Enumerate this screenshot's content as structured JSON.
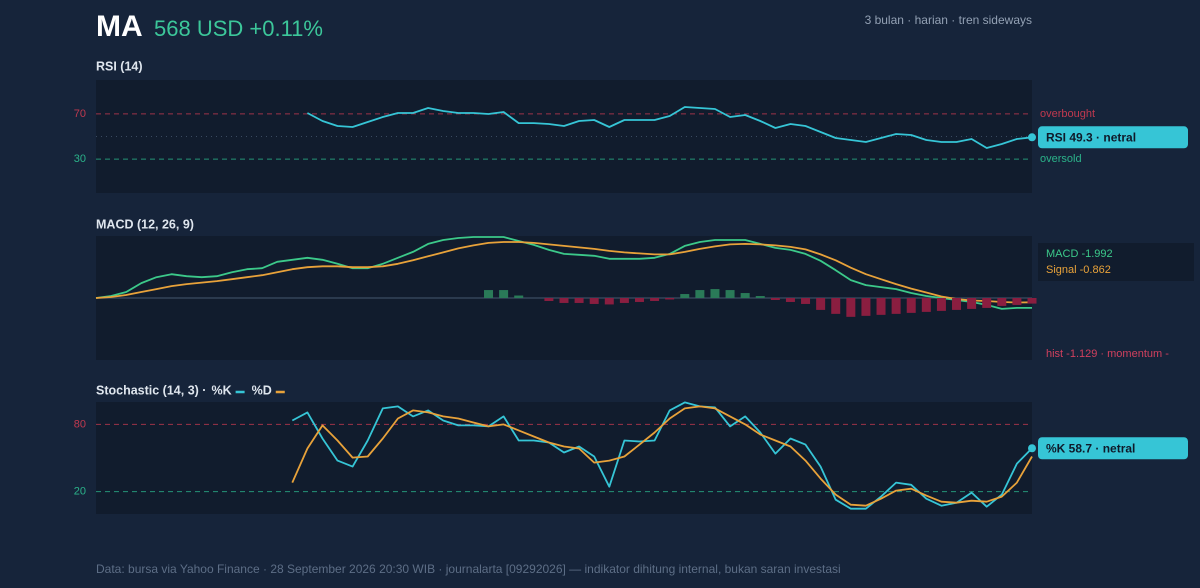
{
  "header": {
    "title": "MA",
    "price": "568 USD +0.11%",
    "subtitle": "3 bulan · harian · tren sideways"
  },
  "chart_data": [
    {
      "type": "line",
      "title": "RSI (14)",
      "ylim": [
        0,
        100
      ],
      "yticks": [
        30,
        70
      ],
      "tick_colors": [
        "#2bb38a",
        "#c0394f"
      ],
      "reference_labels": [
        "oversold",
        "overbought"
      ],
      "midline": 50,
      "value_label": "RSI 49.3 · netral",
      "series": [
        {
          "color": "#36c5d6",
          "values": [
            null,
            null,
            null,
            null,
            null,
            null,
            null,
            null,
            null,
            null,
            null,
            null,
            null,
            null,
            70.8,
            63.7,
            59.3,
            58.4,
            62.8,
            67.3,
            70.8,
            70.8,
            75.2,
            72.6,
            70.8,
            70.8,
            69.9,
            71.7,
            61.9,
            61.9,
            61.1,
            59.3,
            63.7,
            64.6,
            58.4,
            64.6,
            64.6,
            64.6,
            68.1,
            76.1,
            75.2,
            74.3,
            67.3,
            69.0,
            63.7,
            57.5,
            61.1,
            59.3,
            54.0,
            48.7,
            46.9,
            45.1,
            48.7,
            52.2,
            51.3,
            46.9,
            45.1,
            45.1,
            47.8,
            39.8,
            43.4,
            47.8,
            49.3
          ]
        }
      ]
    },
    {
      "type": "line",
      "title": "MACD (12, 26, 9)",
      "ylim": [
        -12.5,
        12.5
      ],
      "note": "hist -1.129 · momentum -",
      "series": [
        {
          "label": "MACD -1.992",
          "color": "#3cc98a",
          "values": [
            0,
            0.4,
            1.2,
            3.0,
            4.2,
            4.8,
            4.4,
            4.2,
            4.4,
            5.2,
            5.8,
            6.0,
            7.3,
            7.7,
            8.1,
            7.7,
            6.9,
            6.0,
            6.0,
            6.9,
            8.1,
            9.3,
            10.9,
            11.7,
            12.1,
            12.3,
            12.3,
            12.3,
            11.5,
            10.7,
            9.7,
            8.9,
            8.7,
            8.5,
            7.9,
            7.9,
            7.9,
            8.1,
            8.9,
            10.5,
            11.3,
            11.7,
            11.7,
            11.7,
            10.9,
            10.1,
            9.7,
            8.9,
            7.5,
            5.6,
            3.6,
            2.6,
            2.2,
            1.8,
            1.0,
            0.4,
            0,
            -0.4,
            -0.8,
            -1.4,
            -2.2,
            -2.0,
            -1.992
          ]
        },
        {
          "label": "Signal -0.862",
          "color": "#e8a23a",
          "values": [
            0,
            0.2,
            0.6,
            1.2,
            1.8,
            2.4,
            2.8,
            3.1,
            3.4,
            3.8,
            4.2,
            4.6,
            5.2,
            5.8,
            6.2,
            6.4,
            6.4,
            6.2,
            6.2,
            6.4,
            6.9,
            7.6,
            8.4,
            9.2,
            10.0,
            10.6,
            11.1,
            11.3,
            11.3,
            11.1,
            10.8,
            10.5,
            10.2,
            9.9,
            9.5,
            9.2,
            9.0,
            8.8,
            8.8,
            9.3,
            9.9,
            10.4,
            10.8,
            10.9,
            10.8,
            10.6,
            10.3,
            9.8,
            8.8,
            7.6,
            6.1,
            4.8,
            3.8,
            2.8,
            1.9,
            1.1,
            0.3,
            -0.2,
            -0.5,
            -0.6,
            -0.8,
            -0.9,
            -0.862
          ]
        },
        {
          "type": "bar",
          "color": "#2a7a58",
          "negative_color": "#8a1e40",
          "values": [
            null,
            null,
            null,
            null,
            null,
            null,
            null,
            null,
            null,
            null,
            null,
            null,
            null,
            null,
            null,
            null,
            null,
            null,
            null,
            null,
            null,
            null,
            null,
            null,
            null,
            null,
            1.6,
            1.6,
            0.5,
            0,
            -0.6,
            -1.0,
            -1.0,
            -1.2,
            -1.3,
            -1.0,
            -0.8,
            -0.6,
            -0.3,
            0.8,
            1.6,
            1.8,
            1.6,
            1.0,
            0.4,
            -0.4,
            -0.8,
            -1.2,
            -2.4,
            -3.2,
            -3.8,
            -3.6,
            -3.4,
            -3.2,
            -3.0,
            -2.8,
            -2.6,
            -2.4,
            -2.2,
            -2.0,
            -1.6,
            -1.4,
            -1.129
          ]
        }
      ]
    },
    {
      "type": "line",
      "title": "Stochastic (14, 3) ·",
      "ylim": [
        0,
        100
      ],
      "yticks": [
        20,
        80
      ],
      "tick_colors": [
        "#2bb38a",
        "#c0394f"
      ],
      "value_label": "%K 58.7 · netral",
      "series": [
        {
          "name": "%K",
          "color": "#36c5d6",
          "values": [
            null,
            null,
            null,
            null,
            null,
            null,
            null,
            null,
            null,
            null,
            null,
            null,
            null,
            83.5,
            90.7,
            67.4,
            47.7,
            42.3,
            65.6,
            94.3,
            96.1,
            87.1,
            92.5,
            83.5,
            79.1,
            79.1,
            78.2,
            87.1,
            65.6,
            65.6,
            63.8,
            54.9,
            60.3,
            51.3,
            24.4,
            65.6,
            64.7,
            65.6,
            92.5,
            99.6,
            96.1,
            95.2,
            78.2,
            87.1,
            72.8,
            53.9,
            67.4,
            62.0,
            42.3,
            12.8,
            4.7,
            4.7,
            15.5,
            28.0,
            26.1,
            13.7,
            7.4,
            10.1,
            19.1,
            6.5,
            17.3,
            45,
            58.7
          ]
        },
        {
          "name": "%D",
          "color": "#e8a23a",
          "values": [
            null,
            null,
            null,
            null,
            null,
            null,
            null,
            null,
            null,
            null,
            null,
            null,
            null,
            28.0,
            58.5,
            79.1,
            65.6,
            50.4,
            51.3,
            67.4,
            85.3,
            92.5,
            90.7,
            87.1,
            85.3,
            81.7,
            78.2,
            80.0,
            74.6,
            69.2,
            63.8,
            60.3,
            58.5,
            45.9,
            47.7,
            51.3,
            62.0,
            72.8,
            85.3,
            94.3,
            96.1,
            94.3,
            87.1,
            80.0,
            71.0,
            65.6,
            60.3,
            47.7,
            31.6,
            17.3,
            8.3,
            7.4,
            13.7,
            20.9,
            22.6,
            16.4,
            11.0,
            10.1,
            11.9,
            11.0,
            15.5,
            28.0,
            51.3
          ]
        }
      ]
    }
  ],
  "footer": "Data: bursa via Yahoo Finance · 28 September 2026 20:30 WIB · journalarta [09292026] — indikator dihitung internal, bukan saran investasi"
}
